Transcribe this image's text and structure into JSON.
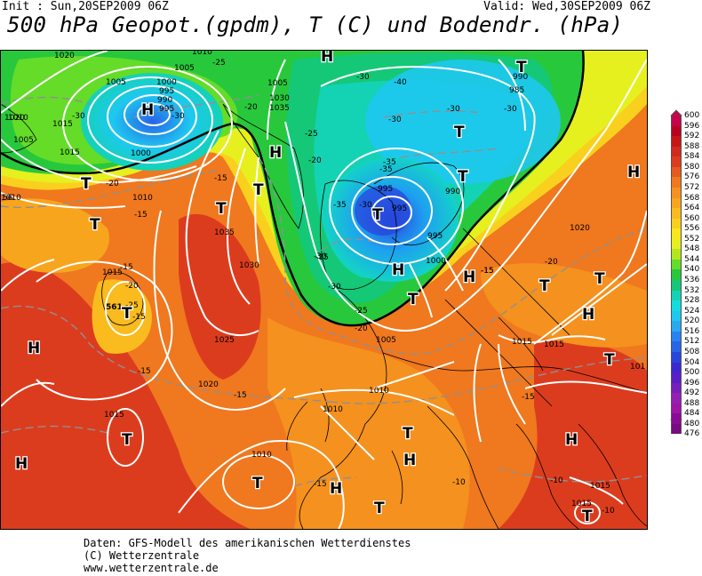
{
  "header": {
    "init": "Init : Sun,20SEP2009 06Z",
    "valid": "Valid: Wed,30SEP2009 06Z",
    "title": "500 hPa Geopot.(gpdm), T (C) und Bodendr. (hPa)"
  },
  "credits": [
    "Daten: GFS-Modell des amerikanischen Wetterdienstes",
    "(C) Wetterzentrale",
    "www.wetterzentrale.de"
  ],
  "legend": {
    "labels": [
      "600",
      "596",
      "592",
      "588",
      "584",
      "580",
      "576",
      "572",
      "568",
      "564",
      "560",
      "556",
      "552",
      "548",
      "544",
      "540",
      "536",
      "532",
      "528",
      "524",
      "520",
      "516",
      "512",
      "508",
      "504",
      "500",
      "496",
      "492",
      "488",
      "484",
      "480",
      "476"
    ],
    "colors": [
      "#c8004b",
      "#b9001e",
      "#c81414",
      "#d2281e",
      "#dc3c1e",
      "#e65a1e",
      "#f0781e",
      "#f5911e",
      "#f8a51e",
      "#fabb1e",
      "#fad01e",
      "#f8e61e",
      "#e6f01e",
      "#b4e61e",
      "#64dc28",
      "#28c83c",
      "#14c878",
      "#14d2b4",
      "#14dcdc",
      "#1ec8f0",
      "#28aaf0",
      "#2882f0",
      "#2864e6",
      "#2846dc",
      "#3c28d2",
      "#5a1ec8",
      "#781ebe",
      "#961eb4",
      "#a014aa",
      "#8c0a96",
      "#780a82"
    ]
  },
  "map": {
    "pressure_labels": [
      "1020",
      "1010",
      "1005",
      "1000",
      "995",
      "990",
      "995",
      "1005",
      "1000",
      "1015",
      "1010",
      "1005",
      "1020",
      "1035",
      "1030",
      "1035",
      "1030",
      "1025",
      "1020",
      "1015",
      "1010",
      "1010",
      "1010",
      "1015",
      "995",
      "995",
      "990",
      "995",
      "1000",
      "1005",
      "990",
      "985",
      "1020",
      "1015",
      "1015",
      "1015",
      "101",
      "1010",
      "1015",
      "1015",
      "1010",
      "1005"
    ],
    "temp_labels": [
      "-30",
      "-20",
      "-25",
      "-30",
      "-20",
      "-15",
      "-15",
      "-20",
      "-25",
      "-30",
      "-35",
      "-40",
      "-30",
      "-30",
      "-30",
      "-35",
      "-30",
      "-30",
      "-35",
      "-30",
      "-25",
      "-20",
      "-25",
      "-15",
      "-15",
      "-20",
      "-20",
      "-15",
      "-15",
      "-15",
      "-15",
      "-15",
      "-10",
      "-10",
      "-10",
      "-15",
      "-15"
    ],
    "height_labels": [
      "561",
      "56"
    ],
    "centers": [
      "H",
      "H",
      "T",
      "T",
      "H",
      "T",
      "H",
      "H",
      "T",
      "T",
      "T",
      "T",
      "T",
      "T",
      "T",
      "T",
      "H",
      "H",
      "T",
      "T",
      "H",
      "H",
      "H",
      "T",
      "T",
      "T",
      "H",
      "T",
      "H",
      "T"
    ]
  }
}
